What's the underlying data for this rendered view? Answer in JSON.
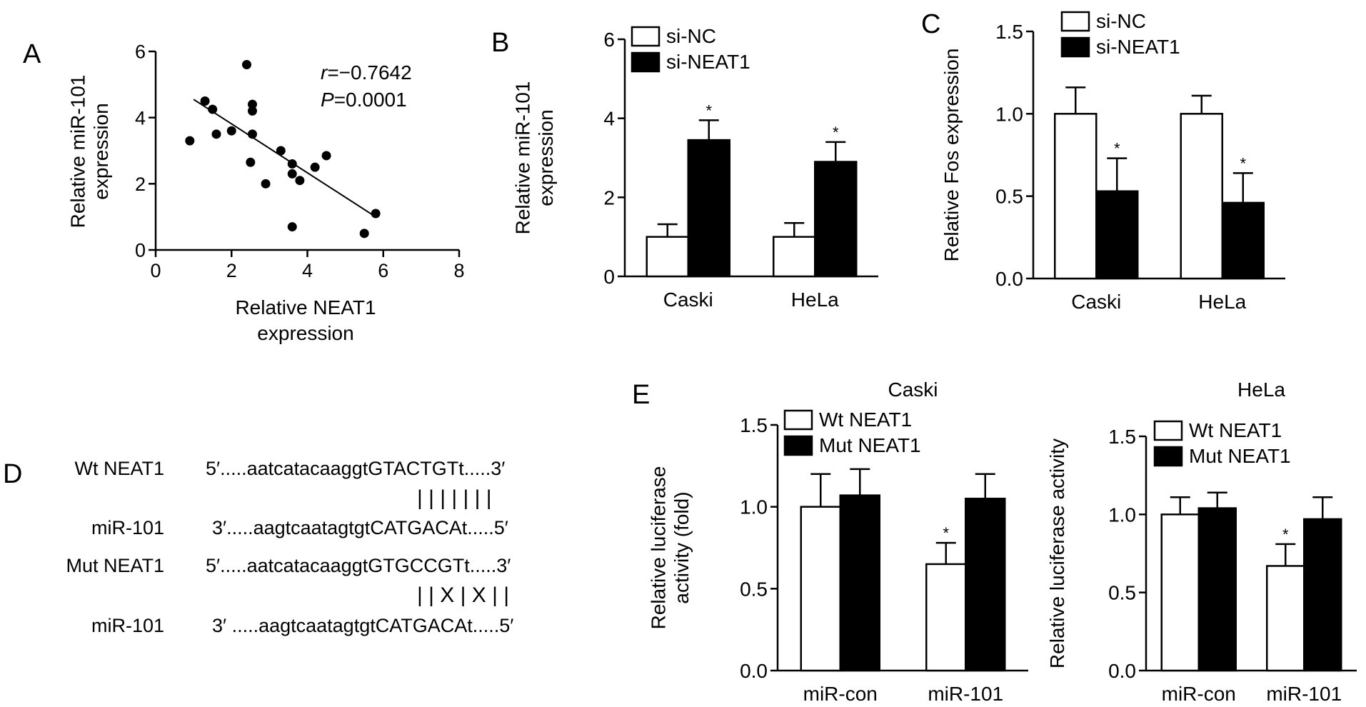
{
  "figure": {
    "panel_labels": [
      "A",
      "B",
      "C",
      "D",
      "E"
    ],
    "colors": {
      "open_bar": "#ffffff",
      "filled_bar": "#000000",
      "ink": "#000000"
    }
  },
  "chart_data": [
    {
      "panel": "A",
      "type": "scatter",
      "xlabel": [
        "Relative NEAT1",
        "expression"
      ],
      "ylabel": [
        "Relative miR-101",
        "expression"
      ],
      "xlim": [
        0,
        8
      ],
      "ylim": [
        0,
        6
      ],
      "xticks": [
        "0",
        "2",
        "4",
        "6",
        "8"
      ],
      "yticks": [
        "0",
        "2",
        "4",
        "6"
      ],
      "annotation": {
        "r_symbol": "r",
        "r_value": "=−0.7642",
        "p_symbol": "P",
        "p_value": "=0.0001"
      },
      "points": [
        [
          0.9,
          3.3
        ],
        [
          1.3,
          4.5
        ],
        [
          1.5,
          4.25
        ],
        [
          1.6,
          3.5
        ],
        [
          2.0,
          3.6
        ],
        [
          2.4,
          5.6
        ],
        [
          2.55,
          4.4
        ],
        [
          2.55,
          4.2
        ],
        [
          2.55,
          3.5
        ],
        [
          2.5,
          2.65
        ],
        [
          2.9,
          2.0
        ],
        [
          3.3,
          3.0
        ],
        [
          3.6,
          2.6
        ],
        [
          3.6,
          2.3
        ],
        [
          3.8,
          2.1
        ],
        [
          4.2,
          2.5
        ],
        [
          4.5,
          2.85
        ],
        [
          3.6,
          0.7
        ],
        [
          5.5,
          0.5
        ],
        [
          5.8,
          1.1
        ]
      ],
      "regression": {
        "x": [
          1.0,
          5.8
        ],
        "y": [
          4.55,
          1.0
        ]
      }
    },
    {
      "panel": "B",
      "type": "bar",
      "categories": [
        "Caski",
        "HeLa"
      ],
      "ylabel": [
        "Relative miR-101",
        "expression"
      ],
      "ylim": [
        0,
        6
      ],
      "yticks": [
        "0",
        "2",
        "4",
        "6"
      ],
      "legend": "top-left",
      "series": [
        {
          "name": "si-NC",
          "fill": "open",
          "values": [
            1.0,
            1.0
          ],
          "errors": [
            0.32,
            0.35
          ],
          "sig": [
            "",
            ""
          ]
        },
        {
          "name": "si-NEAT1",
          "fill": "filled",
          "values": [
            3.45,
            2.9
          ],
          "errors": [
            0.5,
            0.5
          ],
          "sig": [
            "*",
            "*"
          ]
        }
      ]
    },
    {
      "panel": "C",
      "type": "bar",
      "categories": [
        "Caski",
        "HeLa"
      ],
      "ylabel": [
        "Relative Fos expression"
      ],
      "ylim": [
        0,
        1.5
      ],
      "yticks": [
        "0.0",
        "0.5",
        "1.0",
        "1.5"
      ],
      "legend": "top-left",
      "series": [
        {
          "name": "si-NC",
          "fill": "open",
          "values": [
            1.0,
            1.0
          ],
          "errors": [
            0.16,
            0.11
          ],
          "sig": [
            "",
            ""
          ]
        },
        {
          "name": "si-NEAT1",
          "fill": "filled",
          "values": [
            0.53,
            0.46
          ],
          "errors": [
            0.2,
            0.18
          ],
          "sig": [
            "*",
            "*"
          ]
        }
      ]
    },
    {
      "panel": "E",
      "type": "bar",
      "title": "Caski",
      "categories": [
        "miR-con",
        "miR-101"
      ],
      "ylabel": [
        "Relative luciferase",
        "activity (fold)"
      ],
      "ylim": [
        0,
        1.5
      ],
      "yticks": [
        "0.0",
        "0.5",
        "1.0",
        "1.5"
      ],
      "legend": "top-left",
      "series": [
        {
          "name": "Wt NEAT1",
          "fill": "open",
          "values": [
            1.0,
            0.65
          ],
          "errors": [
            0.2,
            0.13
          ],
          "sig": [
            "",
            "*"
          ]
        },
        {
          "name": "Mut NEAT1",
          "fill": "filled",
          "values": [
            1.07,
            1.05
          ],
          "errors": [
            0.16,
            0.15
          ],
          "sig": [
            "",
            ""
          ]
        }
      ]
    },
    {
      "panel": "E",
      "type": "bar",
      "title": "HeLa",
      "categories": [
        "miR-con",
        "miR-101"
      ],
      "ylabel": [
        "Relative luciferase activity"
      ],
      "ylim": [
        0,
        1.5
      ],
      "yticks": [
        "0.0",
        "0.5",
        "1.0",
        "1.5"
      ],
      "legend": "top-left",
      "series": [
        {
          "name": "Wt NEAT1",
          "fill": "open",
          "values": [
            1.0,
            0.67
          ],
          "errors": [
            0.11,
            0.14
          ],
          "sig": [
            "",
            "*"
          ]
        },
        {
          "name": "Mut NEAT1",
          "fill": "filled",
          "values": [
            1.04,
            0.97
          ],
          "errors": [
            0.1,
            0.14
          ],
          "sig": [
            "",
            ""
          ]
        }
      ]
    }
  ],
  "sequences": {
    "rows": [
      {
        "name": "Wt NEAT1",
        "seq": "5′.....aatcatacaaggtGTACTGTt.....3′"
      },
      {
        "name": "miR-101",
        "seq": "3′.....aagtcaatagtgtCATGACAt.....5′"
      },
      {
        "name": "Mut NEAT1",
        "seq": "5′.....aatcatacaaggtGTGCCGTt.....3′"
      },
      {
        "name": "miR-101",
        "seq": "3′ .....aagtcaatagtgtCATGACAt.....5′"
      }
    ],
    "pairing": [
      "| | | | | | |",
      "| | X | X | |"
    ]
  }
}
